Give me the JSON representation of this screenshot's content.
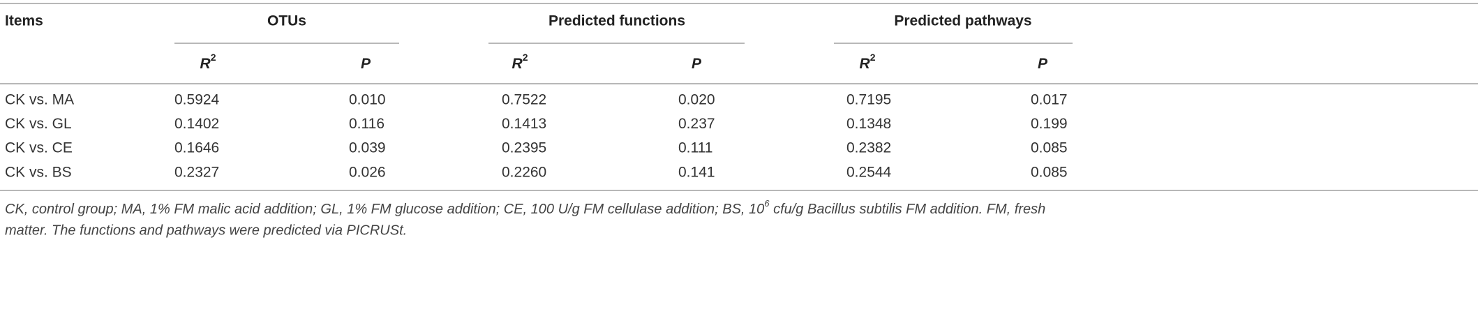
{
  "table": {
    "header": {
      "items": "Items",
      "groups": [
        "OTUs",
        "Predicted functions",
        "Predicted pathways"
      ],
      "subheaders": [
        {
          "symbol": "R",
          "superscript": "2"
        },
        {
          "symbol": "P"
        },
        {
          "symbol": "R",
          "superscript": "2"
        },
        {
          "symbol": "P"
        },
        {
          "symbol": "R",
          "superscript": "2"
        },
        {
          "symbol": "P"
        }
      ]
    },
    "rows": [
      [
        "CK vs. MA",
        "0.5924",
        "0.010",
        "0.7522",
        "0.020",
        "0.7195",
        "0.017"
      ],
      [
        "CK vs. GL",
        "0.1402",
        "0.116",
        "0.1413",
        "0.237",
        "0.1348",
        "0.199"
      ],
      [
        "CK vs. CE",
        "0.1646",
        "0.039",
        "0.2395",
        "0.111",
        "0.2382",
        "0.085"
      ],
      [
        "CK vs. BS",
        "0.2327",
        "0.026",
        "0.2260",
        "0.141",
        "0.2544",
        "0.085"
      ]
    ]
  },
  "footnote": {
    "line1": [
      "CK, control group; MA, 1% FM malic acid addition; GL, 1% FM glucose addition; CE, 100 U/g FM cellulase addition; BS, 10",
      "6",
      " cfu/g Bacillus subtilis FM addition. FM, fresh"
    ],
    "line2": "matter. The functions and pathways were predicted via PICRUSt."
  }
}
